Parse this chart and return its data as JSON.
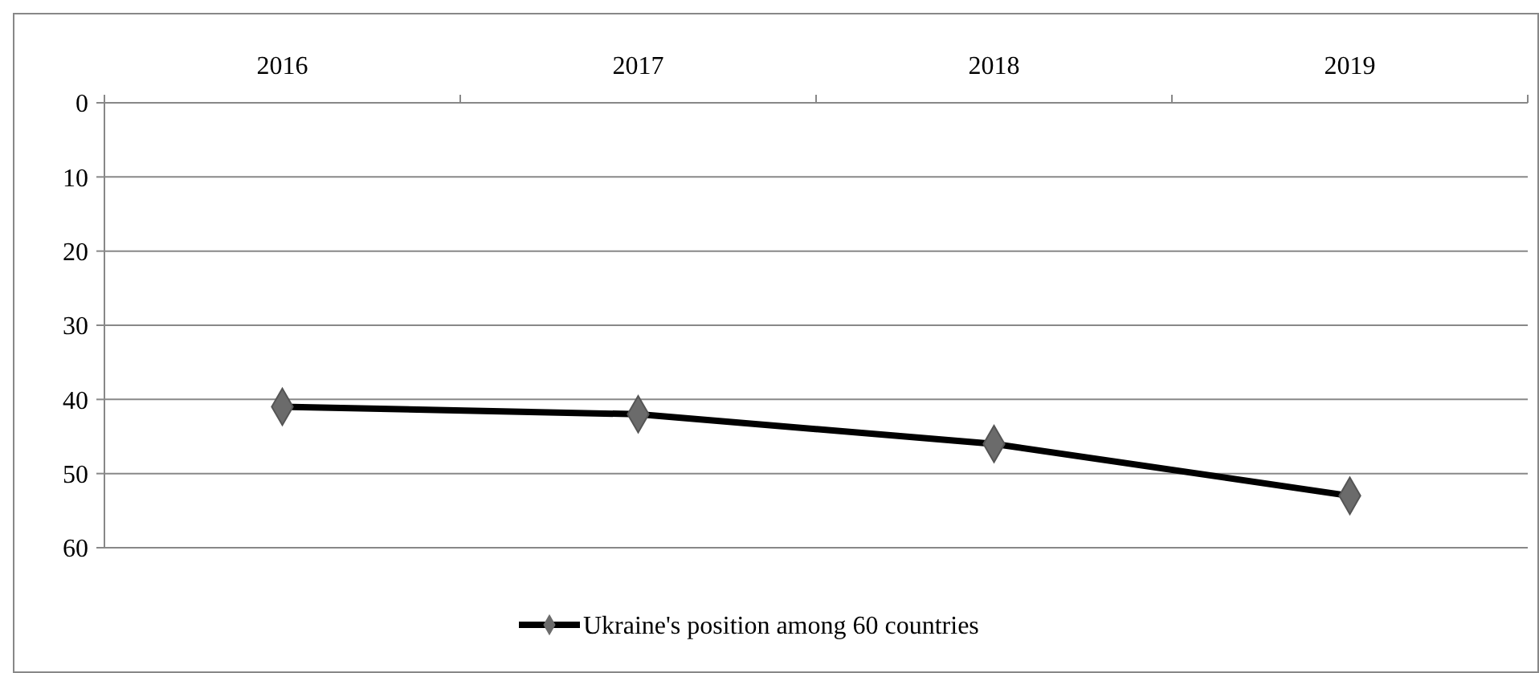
{
  "chart_data": {
    "type": "line",
    "categories": [
      "2016",
      "2017",
      "2018",
      "2019"
    ],
    "series": [
      {
        "name": "Ukraine's position among 60 countries",
        "color": "#000000",
        "values": [
          41,
          42,
          46,
          53
        ]
      }
    ],
    "ylim": [
      60,
      0
    ],
    "yticks": [
      0,
      10,
      20,
      30,
      40,
      50,
      60
    ],
    "grid": "y",
    "legend": "bottom",
    "marker": "diamond",
    "line_style": "solid"
  }
}
